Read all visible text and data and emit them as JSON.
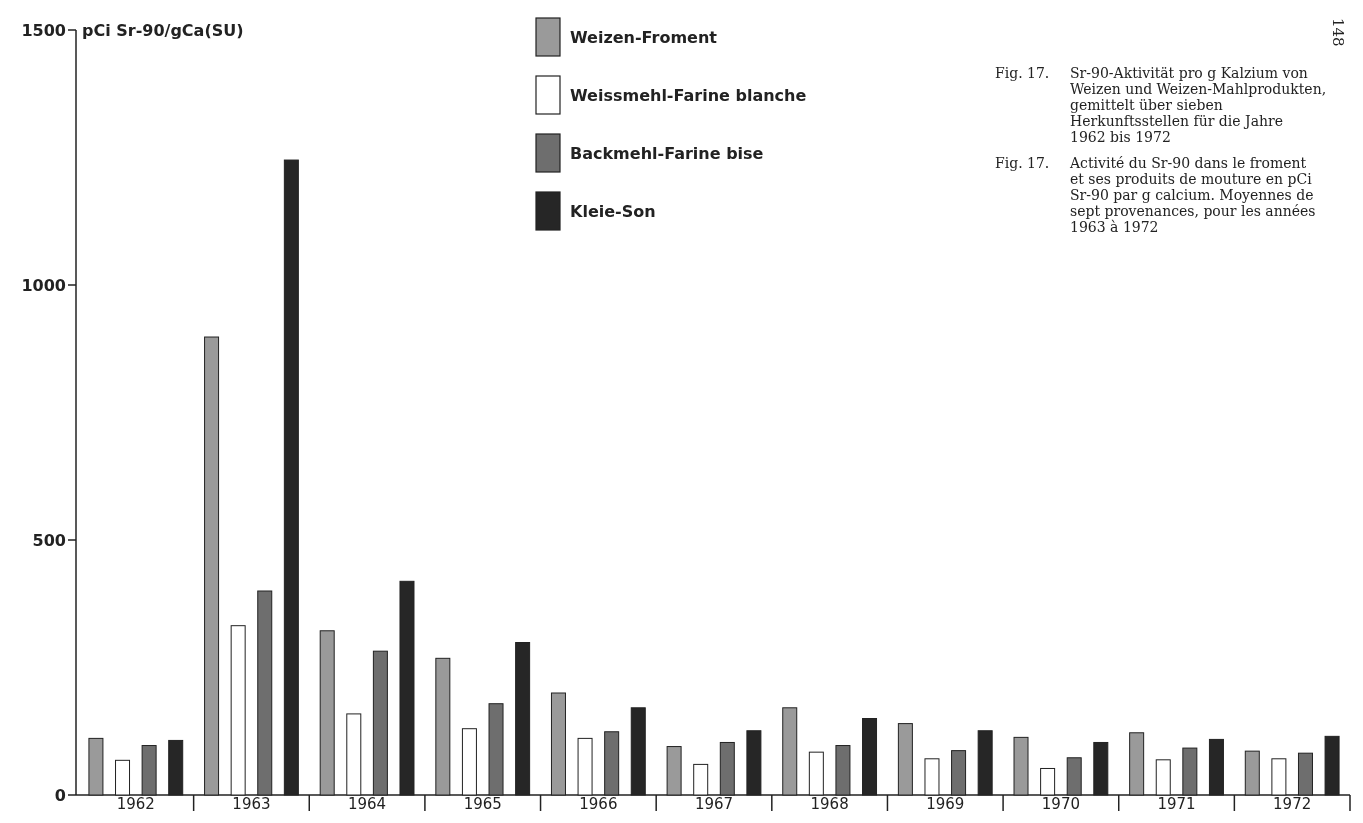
{
  "chart_data": {
    "type": "bar",
    "ylabel": "pCi Sr-90/gCa(SU)",
    "categories": [
      "1962",
      "1963",
      "1964",
      "1965",
      "1966",
      "1967",
      "1968",
      "1969",
      "1970",
      "1971",
      "1972"
    ],
    "series": [
      {
        "name": "Weizen-Froment",
        "color": "#9a9a9a",
        "values": [
          111,
          898,
          322,
          268,
          200,
          95,
          171,
          140,
          113,
          122,
          86
        ]
      },
      {
        "name": "Weissmehl-Farine blanche",
        "color": "#ffffff",
        "values": [
          68,
          332,
          159,
          130,
          111,
          60,
          84,
          71,
          52,
          69,
          71
        ]
      },
      {
        "name": "Backmehl-Farine bise",
        "color": "#6e6e6e",
        "values": [
          97,
          400,
          282,
          179,
          124,
          103,
          97,
          87,
          73,
          92,
          82
        ]
      },
      {
        "name": "Kleie-Son",
        "color": "#262626",
        "values": [
          107,
          1245,
          419,
          299,
          171,
          126,
          150,
          126,
          103,
          109,
          115
        ]
      }
    ],
    "ylim": [
      0,
      1500
    ],
    "yticks": [
      0,
      500,
      1000,
      1500
    ],
    "legend": "top",
    "annotations": [
      "Fig. 17. Sr-90-Aktivität pro g Kalzium von Weizen und Weizen-Mahlprodukten, gemittelt über sieben Herkunftsstellen für die Jahre 1962 bis 1972",
      "Fig. 17. Activité du Sr-90 dans le froment et ses produits de mouture en pCi Sr-90 par g calcium. Moyennes de sept provenances, pour les années 1963 à 1972",
      "148"
    ]
  }
}
